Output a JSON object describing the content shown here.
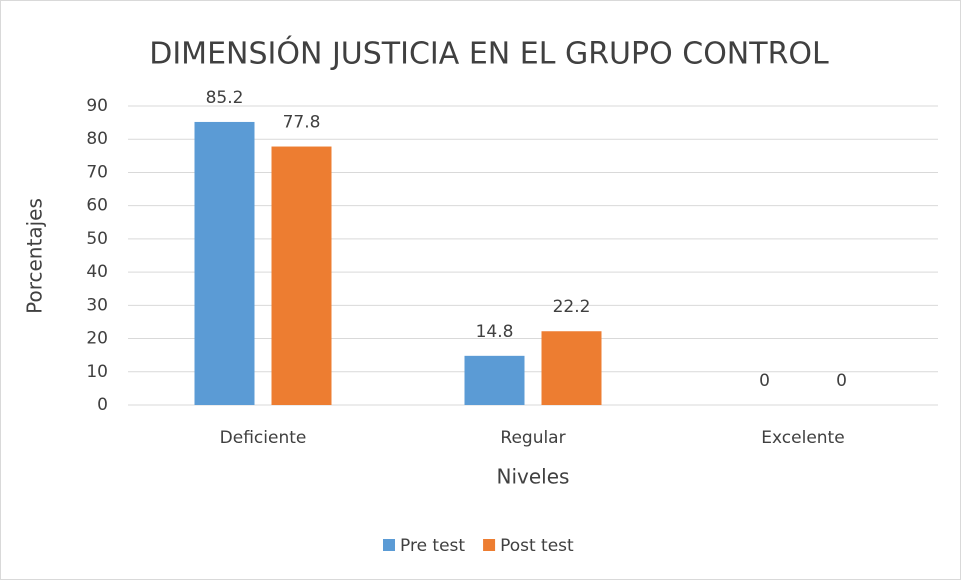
{
  "chart_data": {
    "type": "bar",
    "title": "DIMENSIÓN JUSTICIA EN EL GRUPO CONTROL",
    "x_label": "Niveles",
    "y_label": "Porcentajes",
    "categories": [
      "Deficiente",
      "Regular",
      "Excelente"
    ],
    "series": [
      {
        "name": "Pre test",
        "color": "#5b9bd5",
        "values": [
          85.2,
          14.8,
          0
        ]
      },
      {
        "name": "Post test",
        "color": "#ed7d31",
        "values": [
          77.8,
          22.2,
          0
        ]
      }
    ],
    "ylim": [
      0,
      90
    ],
    "yticks": [
      0,
      10,
      20,
      30,
      40,
      50,
      60,
      70,
      80,
      90
    ],
    "grid": true,
    "legend": "bottom"
  }
}
